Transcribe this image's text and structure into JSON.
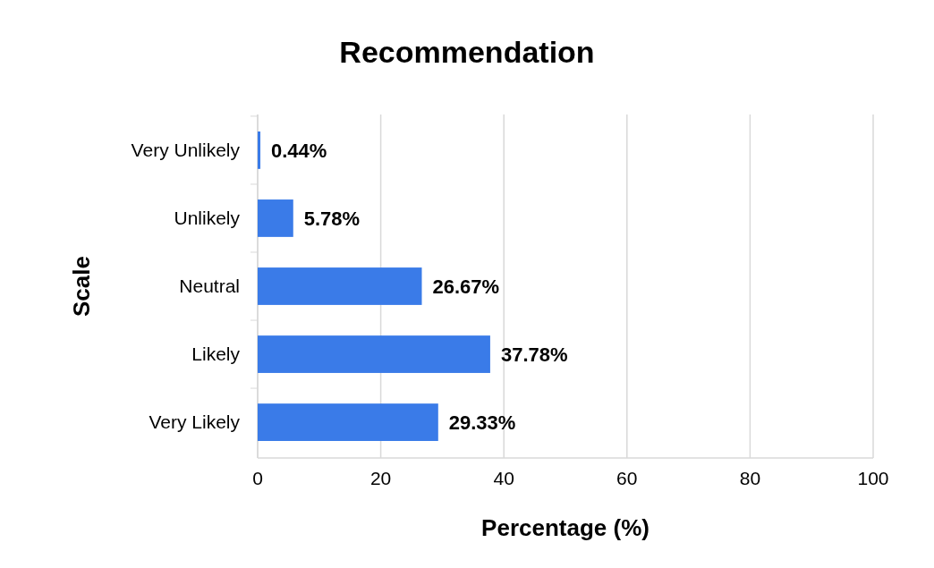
{
  "chart_data": {
    "type": "bar",
    "orientation": "horizontal",
    "title": "Recommendation",
    "xlabel": "Percentage (%)",
    "ylabel": "Scale",
    "categories": [
      "Very Unlikely",
      "Unlikely",
      "Neutral",
      "Likely",
      "Very Likely"
    ],
    "values": [
      0.44,
      5.78,
      26.67,
      37.78,
      29.33
    ],
    "value_labels": [
      "0.44%",
      "5.78%",
      "26.67%",
      "37.78%",
      "29.33%"
    ],
    "color": "#3a7be8",
    "xlim": [
      0,
      100
    ],
    "xticks": [
      0,
      20,
      40,
      60,
      80,
      100
    ],
    "grid": "x"
  }
}
